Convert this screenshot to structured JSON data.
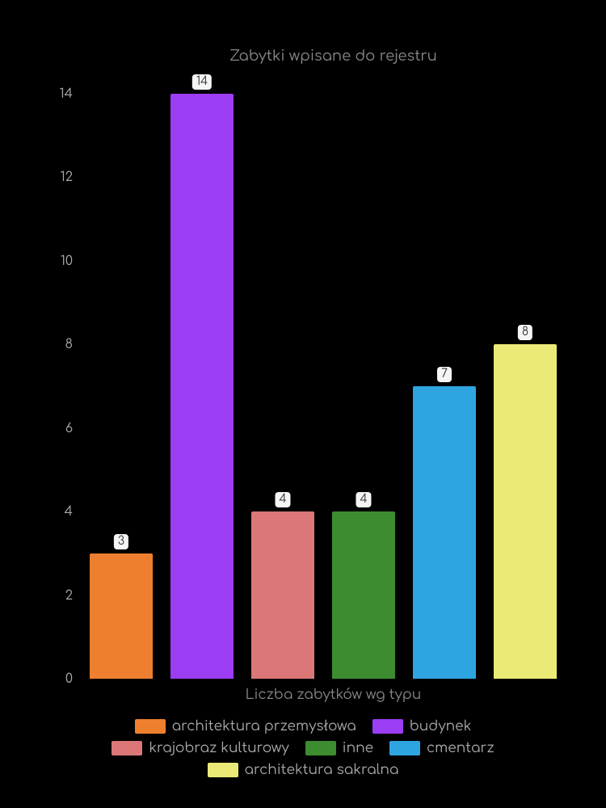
{
  "chart": {
    "type": "bar",
    "title": "Zabytki wpisane do rejestru",
    "title_fontsize": 18,
    "title_color": "#888888",
    "xlabel": "Liczba zabytków wg typu",
    "xlabel_fontsize": 17,
    "background_color": "#000000",
    "text_color": "#aaaaaa",
    "ylim": [
      0,
      14.5
    ],
    "yticks": [
      0,
      2,
      4,
      6,
      8,
      10,
      12,
      14
    ],
    "bar_width": 0.78,
    "bar_label_bg": "#f5f5f5",
    "bar_label_color": "#333333",
    "series": [
      {
        "name": "architektura przemysłowa",
        "value": 3,
        "color": "#ee7f2f"
      },
      {
        "name": "budynek",
        "value": 14,
        "color": "#9b3df2"
      },
      {
        "name": "krajobraz kulturowy",
        "value": 4,
        "color": "#db7777"
      },
      {
        "name": "inne",
        "value": 4,
        "color": "#3d8c2f"
      },
      {
        "name": "cmentarz",
        "value": 7,
        "color": "#2ea5e0"
      },
      {
        "name": "architektura sakralna",
        "value": 8,
        "color": "#ebea77"
      }
    ],
    "legend_rows": [
      [
        0,
        1
      ],
      [
        2,
        3,
        4
      ],
      [
        5
      ]
    ]
  }
}
